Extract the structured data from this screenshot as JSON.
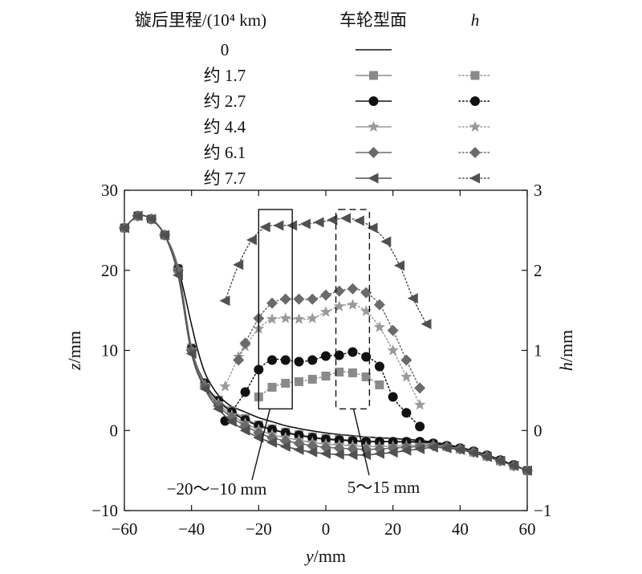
{
  "chart_data": {
    "type": "line",
    "xlabel": {
      "italic": "y",
      "rest": "/mm"
    },
    "ylabel_left": {
      "italic": "z",
      "rest": "/mm"
    },
    "ylabel_right": {
      "italic": "h",
      "rest": "/mm"
    },
    "xlim": [
      -60,
      60
    ],
    "ylim_left": [
      -10,
      30
    ],
    "ylim_right": [
      -1,
      3
    ],
    "x_ticks": [
      -60,
      -40,
      -20,
      0,
      20,
      40,
      60
    ],
    "y_ticks_left": [
      -10,
      0,
      10,
      20,
      30
    ],
    "y_ticks_right": [
      -1,
      0,
      1,
      2,
      3
    ],
    "grid": false,
    "legend": {
      "placement": "top",
      "col_header_mileage": "镟后里程/(10⁴ km)",
      "col_header_profile": "车轮型面",
      "col_header_h": "h",
      "rows": [
        {
          "label": "0",
          "marker": "none",
          "color": "#111111",
          "has_h": false
        },
        {
          "label": "约 1.7",
          "marker": "square",
          "color": "#8a8a8a",
          "has_h": true
        },
        {
          "label": "约 2.7",
          "marker": "circle",
          "color": "#111111",
          "has_h": true
        },
        {
          "label": "约 4.4",
          "marker": "star",
          "color": "#9a9a9a",
          "has_h": true
        },
        {
          "label": "约 6.1",
          "marker": "diamond",
          "color": "#6a6a6a",
          "has_h": true
        },
        {
          "label": "约 7.7",
          "marker": "triangle-left",
          "color": "#505050",
          "has_h": true
        }
      ]
    },
    "profile_series": [
      {
        "name": "0",
        "marker": "none",
        "color": "#111111",
        "x": [
          -60,
          -56,
          -52,
          -48,
          -44,
          -40,
          -38,
          -36,
          -34,
          -32,
          -30,
          -28,
          -24,
          -20,
          -16,
          -12,
          -8,
          -4,
          0,
          4,
          8,
          12,
          16,
          20,
          24,
          28,
          32,
          36,
          40,
          44,
          48,
          52,
          56,
          60
        ],
        "y": [
          25.3,
          26.8,
          26.4,
          24.4,
          20.3,
          13.2,
          9.8,
          7.2,
          5.6,
          4.4,
          3.6,
          3.0,
          2.3,
          1.6,
          1.1,
          0.6,
          0.25,
          -0.05,
          -0.3,
          -0.5,
          -0.65,
          -0.8,
          -0.9,
          -1.0,
          -1.1,
          -1.25,
          -1.45,
          -1.75,
          -2.1,
          -2.55,
          -3.05,
          -3.65,
          -4.35,
          -5.0
        ]
      },
      {
        "name": "约 1.7",
        "marker": "square",
        "color": "#8a8a8a",
        "x": [
          -60,
          -56,
          -52,
          -48,
          -44,
          -40,
          -36,
          -32,
          -28,
          -24,
          -20,
          -16,
          -12,
          -8,
          -4,
          0,
          4,
          8,
          12,
          16,
          20,
          24,
          28,
          32,
          36,
          40,
          44,
          48,
          52,
          56,
          60
        ],
        "y": [
          25.3,
          26.8,
          26.4,
          24.4,
          20.2,
          10.3,
          5.9,
          3.8,
          2.5,
          1.5,
          0.7,
          0.2,
          -0.2,
          -0.5,
          -0.8,
          -1.0,
          -1.1,
          -1.2,
          -1.3,
          -1.35,
          -1.4,
          -1.45,
          -1.55,
          -1.7,
          -2.0,
          -2.3,
          -2.7,
          -3.2,
          -3.8,
          -4.4,
          -5.0
        ]
      },
      {
        "name": "约 2.7",
        "marker": "circle",
        "color": "#111111",
        "x": [
          -60,
          -56,
          -52,
          -48,
          -44,
          -40,
          -36,
          -32,
          -28,
          -24,
          -20,
          -16,
          -12,
          -8,
          -4,
          0,
          4,
          8,
          12,
          16,
          20,
          24,
          28,
          32,
          36,
          40,
          44,
          48,
          52,
          56,
          60
        ],
        "y": [
          25.3,
          26.8,
          26.4,
          24.4,
          20.2,
          10.2,
          5.9,
          3.7,
          2.3,
          1.3,
          0.6,
          0.1,
          -0.3,
          -0.6,
          -0.9,
          -1.1,
          -1.2,
          -1.3,
          -1.4,
          -1.4,
          -1.4,
          -1.4,
          -1.4,
          -1.6,
          -1.9,
          -2.2,
          -2.6,
          -3.1,
          -3.7,
          -4.3,
          -5.0
        ]
      },
      {
        "name": "约 4.4",
        "marker": "star",
        "color": "#9a9a9a",
        "x": [
          -60,
          -56,
          -52,
          -48,
          -44,
          -40,
          -36,
          -32,
          -28,
          -24,
          -20,
          -16,
          -12,
          -8,
          -4,
          0,
          4,
          8,
          12,
          16,
          20,
          24,
          28,
          32,
          36,
          40,
          44,
          48,
          52,
          56,
          60
        ],
        "y": [
          25.3,
          26.8,
          26.4,
          24.4,
          20.1,
          10.1,
          5.7,
          3.4,
          1.9,
          0.9,
          0.1,
          -0.5,
          -0.9,
          -1.2,
          -1.5,
          -1.7,
          -1.8,
          -1.9,
          -2.0,
          -2.0,
          -1.95,
          -1.9,
          -1.8,
          -1.8,
          -2.0,
          -2.3,
          -2.7,
          -3.2,
          -3.8,
          -4.4,
          -5.0
        ]
      },
      {
        "name": "约 6.1",
        "marker": "diamond",
        "color": "#6a6a6a",
        "x": [
          -60,
          -56,
          -52,
          -48,
          -44,
          -40,
          -36,
          -32,
          -28,
          -24,
          -20,
          -16,
          -12,
          -8,
          -4,
          0,
          4,
          8,
          12,
          16,
          20,
          24,
          28,
          32,
          36,
          40,
          44,
          48,
          52,
          56,
          60
        ],
        "y": [
          25.3,
          26.8,
          26.4,
          24.4,
          20.0,
          10.0,
          5.5,
          3.1,
          1.6,
          0.6,
          -0.3,
          -0.9,
          -1.3,
          -1.6,
          -1.9,
          -2.1,
          -2.2,
          -2.3,
          -2.35,
          -2.3,
          -2.2,
          -2.1,
          -2.0,
          -1.9,
          -2.0,
          -2.3,
          -2.7,
          -3.2,
          -3.8,
          -4.4,
          -5.0
        ]
      },
      {
        "name": "约 7.7",
        "marker": "triangle-left",
        "color": "#505050",
        "x": [
          -60,
          -56,
          -52,
          -48,
          -44,
          -40,
          -36,
          -32,
          -28,
          -24,
          -20,
          -16,
          -12,
          -8,
          -4,
          0,
          4,
          8,
          12,
          16,
          20,
          24,
          28,
          32,
          36,
          40,
          44,
          48,
          52,
          56,
          60
        ],
        "y": [
          25.3,
          26.8,
          26.4,
          24.4,
          19.4,
          9.6,
          5.2,
          2.7,
          1.1,
          0.0,
          -0.9,
          -1.5,
          -2.0,
          -2.4,
          -2.7,
          -2.9,
          -3.0,
          -3.05,
          -3.05,
          -2.9,
          -2.75,
          -2.5,
          -2.3,
          -2.1,
          -2.2,
          -2.4,
          -2.8,
          -3.3,
          -3.8,
          -4.4,
          -5.0
        ]
      }
    ],
    "h_series": [
      {
        "name": "约 1.7",
        "marker": "square",
        "color": "#8a8a8a",
        "x": [
          -20,
          -16,
          -12,
          -8,
          -4,
          0,
          4,
          8,
          12,
          16
        ],
        "y": [
          0.42,
          0.54,
          0.59,
          0.61,
          0.64,
          0.68,
          0.73,
          0.72,
          0.67,
          0.57
        ]
      },
      {
        "name": "约 2.7",
        "marker": "circle",
        "color": "#111111",
        "x": [
          -30,
          -24,
          -20,
          -16,
          -12,
          -8,
          -4,
          0,
          4,
          8,
          12,
          16,
          20,
          24,
          28
        ],
        "y": [
          0.12,
          0.48,
          0.76,
          0.88,
          0.88,
          0.86,
          0.88,
          0.93,
          0.94,
          0.98,
          0.92,
          0.8,
          0.42,
          0.22,
          0.05
        ]
      },
      {
        "name": "约 4.4",
        "marker": "star",
        "color": "#9a9a9a",
        "x": [
          -30,
          -26,
          -24,
          -20,
          -16,
          -12,
          -8,
          -4,
          0,
          4,
          8,
          12,
          16,
          20,
          24,
          28
        ],
        "y": [
          0.55,
          0.92,
          1.05,
          1.27,
          1.39,
          1.4,
          1.39,
          1.4,
          1.48,
          1.55,
          1.57,
          1.49,
          1.29,
          1.0,
          0.67,
          0.32
        ]
      },
      {
        "name": "约 6.1",
        "marker": "diamond",
        "color": "#6a6a6a",
        "x": [
          -26,
          -24,
          -20,
          -16,
          -12,
          -8,
          -4,
          0,
          4,
          8,
          12,
          16,
          20,
          24,
          28
        ],
        "y": [
          0.88,
          1.09,
          1.4,
          1.59,
          1.64,
          1.64,
          1.64,
          1.69,
          1.74,
          1.77,
          1.72,
          1.57,
          1.25,
          0.88,
          0.53
        ]
      },
      {
        "name": "约 7.7",
        "marker": "triangle-left",
        "color": "#505050",
        "x": [
          -30,
          -26,
          -22,
          -18,
          -14,
          -10,
          -6,
          -2,
          2,
          6,
          10,
          14,
          18,
          22,
          26,
          30
        ],
        "y": [
          1.62,
          2.07,
          2.38,
          2.54,
          2.56,
          2.56,
          2.58,
          2.6,
          2.63,
          2.65,
          2.62,
          2.53,
          2.36,
          2.06,
          1.65,
          1.33
        ]
      }
    ],
    "annotations": [
      {
        "label": "−20～−10 mm",
        "box_x": [
          -20,
          -10
        ],
        "box_z": [
          2.7,
          27.6
        ],
        "style": "solid"
      },
      {
        "label": "5～15 mm",
        "box_x": [
          3,
          13
        ],
        "box_z": [
          2.7,
          27.6
        ],
        "style": "dashed"
      }
    ]
  }
}
